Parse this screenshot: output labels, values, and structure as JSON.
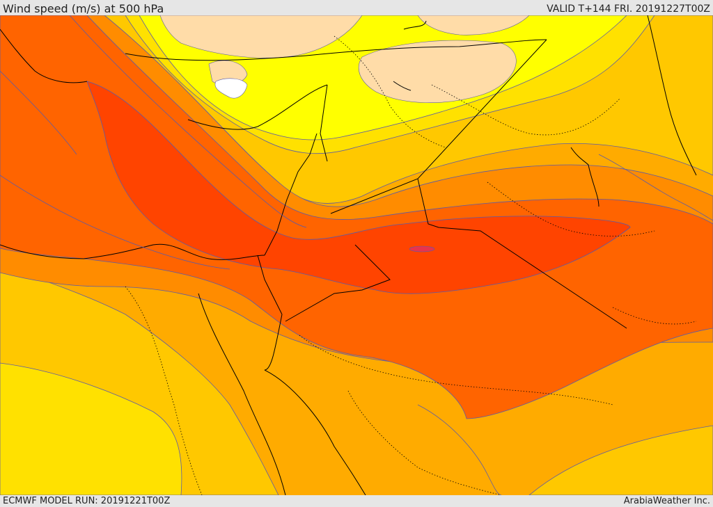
{
  "header": {
    "title": "Wind speed (m/s) at 500 hPa",
    "valid": "VALID T+144 FRI. 20191227T00Z"
  },
  "footer": {
    "model_run": "ECMWF MODEL RUN: 20191221T00Z",
    "credit": "ArabiaWeather Inc."
  },
  "map": {
    "field": "wind speed",
    "level": "500 hPa",
    "units": "m/s",
    "fill_colors": {
      "lightest": "#ffdca8",
      "light_yellow": "#ffff00",
      "yellow": "#ffe100",
      "gold": "#ffc800",
      "amber": "#ffab00",
      "orange": "#ff8c00",
      "dark_orange": "#ff6400",
      "red_orange": "#ff4400",
      "core": "#e8344c"
    },
    "contour_color": "#5b5ba8",
    "boundary_color": "#000000"
  }
}
